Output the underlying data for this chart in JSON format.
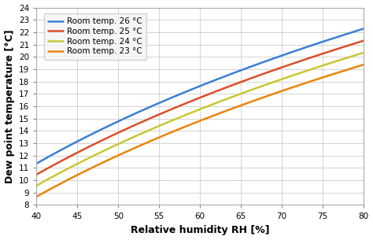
{
  "title": "",
  "xlabel": "Relative humidity RH [%]",
  "ylabel": "Dew point temperature [°C]",
  "rh_range": [
    40,
    80
  ],
  "air_temps": [
    26,
    25,
    24,
    23
  ],
  "colors": [
    "#3a7fd5",
    "#d94f2a",
    "#c8c832",
    "#e8850a"
  ],
  "legend_labels": [
    "Room temp. 26 °C",
    "Room temp. 25 °C",
    "Room temp. 24 °C",
    "Room temp. 23 °C"
  ],
  "ylim": [
    8,
    24
  ],
  "xlim": [
    40,
    80
  ],
  "yticks": [
    8,
    9,
    10,
    11,
    12,
    13,
    14,
    15,
    16,
    17,
    18,
    19,
    20,
    21,
    22,
    23,
    24
  ],
  "xticks": [
    40,
    45,
    50,
    55,
    60,
    65,
    70,
    75,
    80
  ],
  "line_width": 1.8,
  "grid_color": "#cccccc",
  "background_color": "#ffffff",
  "tick_fontsize": 7.5,
  "label_fontsize": 9
}
